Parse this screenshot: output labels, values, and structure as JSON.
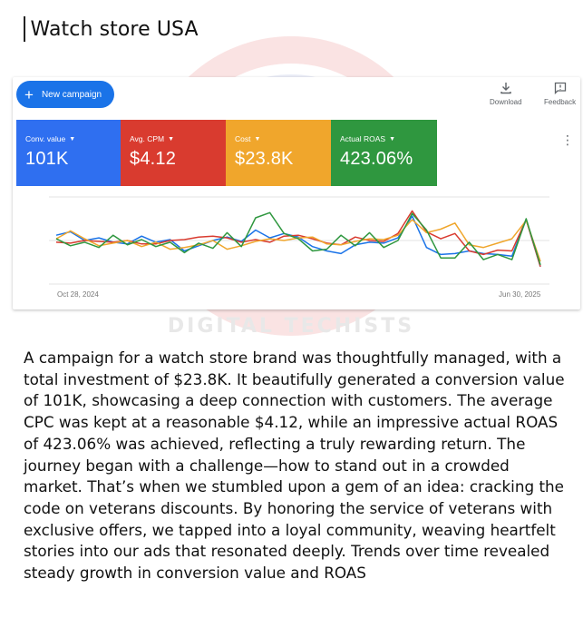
{
  "page": {
    "title": "Watch store USA"
  },
  "watermark": {
    "text": "DIGITAL TECHISTS",
    "colors": {
      "ring": "#f6cccc",
      "inner": "#dde3f3"
    }
  },
  "toolbar": {
    "new_campaign_label": "New campaign",
    "download_label": "Download",
    "feedback_label": "Feedback",
    "icons": {
      "new_campaign": "plus-icon",
      "download": "download-icon",
      "feedback": "feedback-icon",
      "more": "more-vertical-icon"
    }
  },
  "scorecards": [
    {
      "label": "Conv. value",
      "value": "101K",
      "color": "#2f6ff0"
    },
    {
      "label": "Avg. CPM",
      "value": "$4.12",
      "color": "#d93b2f"
    },
    {
      "label": "Cost",
      "value": "$23.8K",
      "color": "#f0a62c"
    },
    {
      "label": "Actual ROAS",
      "value": "423.06%",
      "color": "#2f973f"
    }
  ],
  "chart_data": {
    "type": "line",
    "x_start_label": "Oct 28, 2024",
    "x_end_label": "Jun 30, 2025",
    "grid": true,
    "legend": "none",
    "series": [
      {
        "color": "#1a73e8",
        "values": [
          56,
          60,
          50,
          53,
          48,
          46,
          55,
          48,
          51,
          38,
          44,
          50,
          54,
          49,
          62,
          53,
          58,
          54,
          43,
          38,
          35,
          45,
          48,
          47,
          53,
          78,
          42,
          34,
          35,
          38,
          35,
          34,
          32,
          74,
          20
        ]
      },
      {
        "color": "#d93b2f",
        "values": [
          48,
          47,
          50,
          49,
          48,
          50,
          46,
          46,
          50,
          51,
          54,
          55,
          53,
          48,
          51,
          48,
          55,
          56,
          52,
          47,
          45,
          54,
          50,
          49,
          58,
          84,
          60,
          52,
          58,
          38,
          34,
          39,
          38,
          74,
          20
        ]
      },
      {
        "color": "#f0a62c",
        "values": [
          52,
          61,
          52,
          44,
          47,
          50,
          43,
          48,
          40,
          42,
          45,
          50,
          40,
          44,
          49,
          52,
          50,
          53,
          54,
          46,
          45,
          49,
          52,
          51,
          56,
          74,
          59,
          63,
          70,
          45,
          42,
          47,
          52,
          73,
          26
        ]
      },
      {
        "color": "#2f973f",
        "values": [
          52,
          44,
          48,
          42,
          56,
          45,
          51,
          43,
          48,
          36,
          47,
          41,
          59,
          43,
          76,
          82,
          58,
          52,
          38,
          40,
          56,
          44,
          59,
          42,
          50,
          81,
          62,
          30,
          30,
          48,
          28,
          34,
          28,
          75,
          22
        ]
      }
    ]
  },
  "description": "A campaign for a watch store brand was thoughtfully managed, with a total investment of $23.8K. It beautifully generated a conversion value of 101K, showcasing a deep connection with customers. The average CPC was kept at a reasonable $4.12, while an impressive actual ROAS of 423.06% was achieved, reflecting a truly rewarding return. The journey began with a challenge—how to stand out in a crowded market. That’s when we stumbled upon a gem of an idea: cracking the code on veterans discounts. By honoring the service of veterans with exclusive offers, we tapped into a loyal community, weaving heartfelt stories into our ads that resonated deeply. Trends over time revealed steady growth in conversion value and ROAS"
}
